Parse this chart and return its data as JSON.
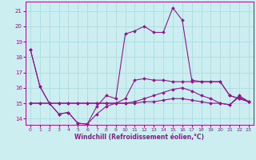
{
  "xlabel": "Windchill (Refroidissement éolien,°C)",
  "bg_color": "#cceef0",
  "line_color": "#8b1a8b",
  "grid_color": "#aadddd",
  "x_ticks": [
    0,
    1,
    2,
    3,
    4,
    5,
    6,
    7,
    8,
    9,
    10,
    11,
    12,
    13,
    14,
    15,
    16,
    17,
    18,
    19,
    20,
    21,
    22,
    23
  ],
  "y_ticks": [
    14,
    15,
    16,
    17,
    18,
    19,
    20,
    21
  ],
  "ylim": [
    13.6,
    21.6
  ],
  "xlim": [
    -0.5,
    23.5
  ],
  "series": [
    [
      18.5,
      16.1,
      15.0,
      14.3,
      14.4,
      13.7,
      13.65,
      14.3,
      14.8,
      15.0,
      15.3,
      16.5,
      16.6,
      16.5,
      16.5,
      16.4,
      16.4,
      16.4,
      16.4,
      16.4,
      16.4,
      15.5,
      15.3,
      15.1
    ],
    [
      18.5,
      16.1,
      15.0,
      14.3,
      14.4,
      13.7,
      13.65,
      14.8,
      15.5,
      15.3,
      19.5,
      19.7,
      20.0,
      19.6,
      19.6,
      21.2,
      20.4,
      16.5,
      16.4,
      16.4,
      16.4,
      15.5,
      15.3,
      15.1
    ],
    [
      15.0,
      15.0,
      15.0,
      15.0,
      15.0,
      15.0,
      15.0,
      15.0,
      15.0,
      15.0,
      15.0,
      15.1,
      15.3,
      15.5,
      15.7,
      15.9,
      16.0,
      15.8,
      15.5,
      15.3,
      15.0,
      14.9,
      15.4,
      15.1
    ],
    [
      15.0,
      15.0,
      15.0,
      15.0,
      15.0,
      15.0,
      15.0,
      15.0,
      15.0,
      15.0,
      15.0,
      15.0,
      15.1,
      15.1,
      15.2,
      15.3,
      15.3,
      15.2,
      15.1,
      15.0,
      15.0,
      14.9,
      15.5,
      15.1
    ]
  ]
}
